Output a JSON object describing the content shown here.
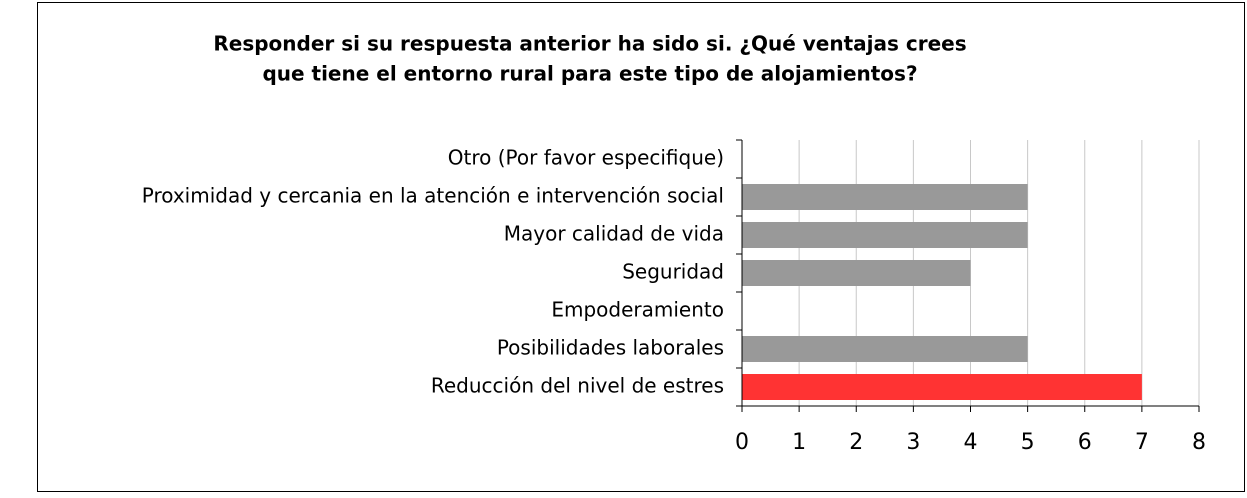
{
  "chart_data": {
    "type": "barh",
    "title": [
      "Responder si su respuesta anterior ha sido si. ¿Qué ventajas crees",
      "que tiene el  entorno rural para este tipo de alojamientos?"
    ],
    "categories": [
      "Otro (Por favor especifique)",
      "Proximidad y cercania en la atención e intervención social",
      "Mayor calidad de vida",
      "Seguridad",
      "Empoderamiento",
      "Posibilidades laborales",
      "Reducción del nivel de estres"
    ],
    "values": [
      0,
      5,
      5,
      4,
      0,
      5,
      7
    ],
    "colors": [
      "#999999",
      "#999999",
      "#999999",
      "#999999",
      "#999999",
      "#999999",
      "#ff3333"
    ],
    "xlim": [
      0,
      8
    ],
    "xticks": [
      0,
      1,
      2,
      3,
      4,
      5,
      6,
      7,
      8
    ],
    "grid": true
  }
}
